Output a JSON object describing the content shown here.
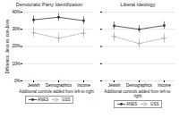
{
  "chart_data": [
    {
      "type": "line",
      "title": "Democratic Party Identification",
      "xlabel": "Additional controls added from left-to-right",
      "ylabel": "Difference: Jews vs. non-Jews",
      "categories": [
        "Jewish",
        "Demographics",
        "Income"
      ],
      "series": [
        {
          "name": "ANES",
          "color": "#333333",
          "marker": "square",
          "line_style": "solid",
          "values": [
            0.355,
            0.37,
            0.35
          ],
          "errors": [
            0.022,
            0.022,
            0.022
          ]
        },
        {
          "name": "GSS",
          "color": "#aaaaaa",
          "marker": "plus",
          "line_style": "dashed",
          "values": [
            0.28,
            0.248,
            0.278
          ],
          "errors": [
            0.028,
            0.028,
            0.028
          ]
        }
      ],
      "ylim": [
        0,
        0.4
      ],
      "yticks": [
        {
          "value": 0.0,
          "label": "0%"
        },
        {
          "value": 0.1,
          "label": "10%"
        },
        {
          "value": 0.2,
          "label": "20%"
        },
        {
          "value": 0.3,
          "label": "30%"
        },
        {
          "value": 0.4,
          "label": "40%"
        }
      ],
      "grid": true,
      "legend": "bottom"
    },
    {
      "type": "line",
      "title": "Liberal Ideology",
      "xlabel": "Additional controls added from left-to-right",
      "categories": [
        "Jewish",
        "Demographics",
        "Income"
      ],
      "series": [
        {
          "name": "ANES",
          "color": "#333333",
          "marker": "square",
          "line_style": "solid",
          "values": [
            0.32,
            0.3,
            0.322
          ],
          "errors": [
            0.022,
            0.022,
            0.022
          ]
        },
        {
          "name": "GSS",
          "color": "#aaaaaa",
          "marker": "plus",
          "line_style": "dashed",
          "values": [
            0.258,
            0.218,
            0.248
          ],
          "errors": [
            0.028,
            0.028,
            0.028
          ]
        }
      ],
      "ylim": [
        0,
        0.4
      ],
      "yticks": [
        0.0,
        0.1,
        0.2,
        0.3,
        0.4
      ],
      "tick_labels": "x",
      "grid": true,
      "legend": "bottom"
    }
  ]
}
